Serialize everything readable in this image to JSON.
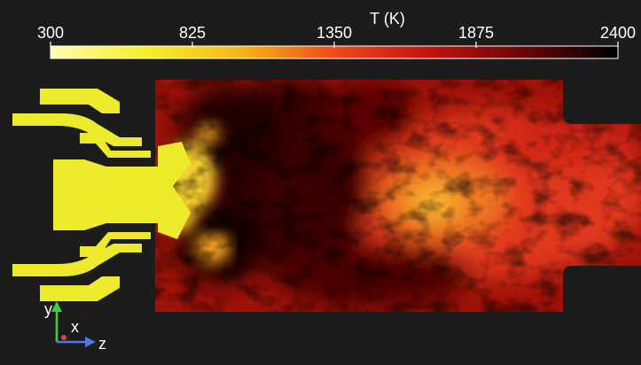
{
  "colorbar": {
    "title": "T (K)",
    "lim": [
      300,
      2400
    ],
    "ticks": [
      300,
      825,
      1350,
      1875,
      2400
    ],
    "colormap": [
      "#fffbb0",
      "#f5f02a",
      "#f5b818",
      "#ef4a1a",
      "#c01410",
      "#6a0606",
      "#000000"
    ]
  },
  "axes": {
    "y": "y",
    "x": "x",
    "z": "z"
  }
}
